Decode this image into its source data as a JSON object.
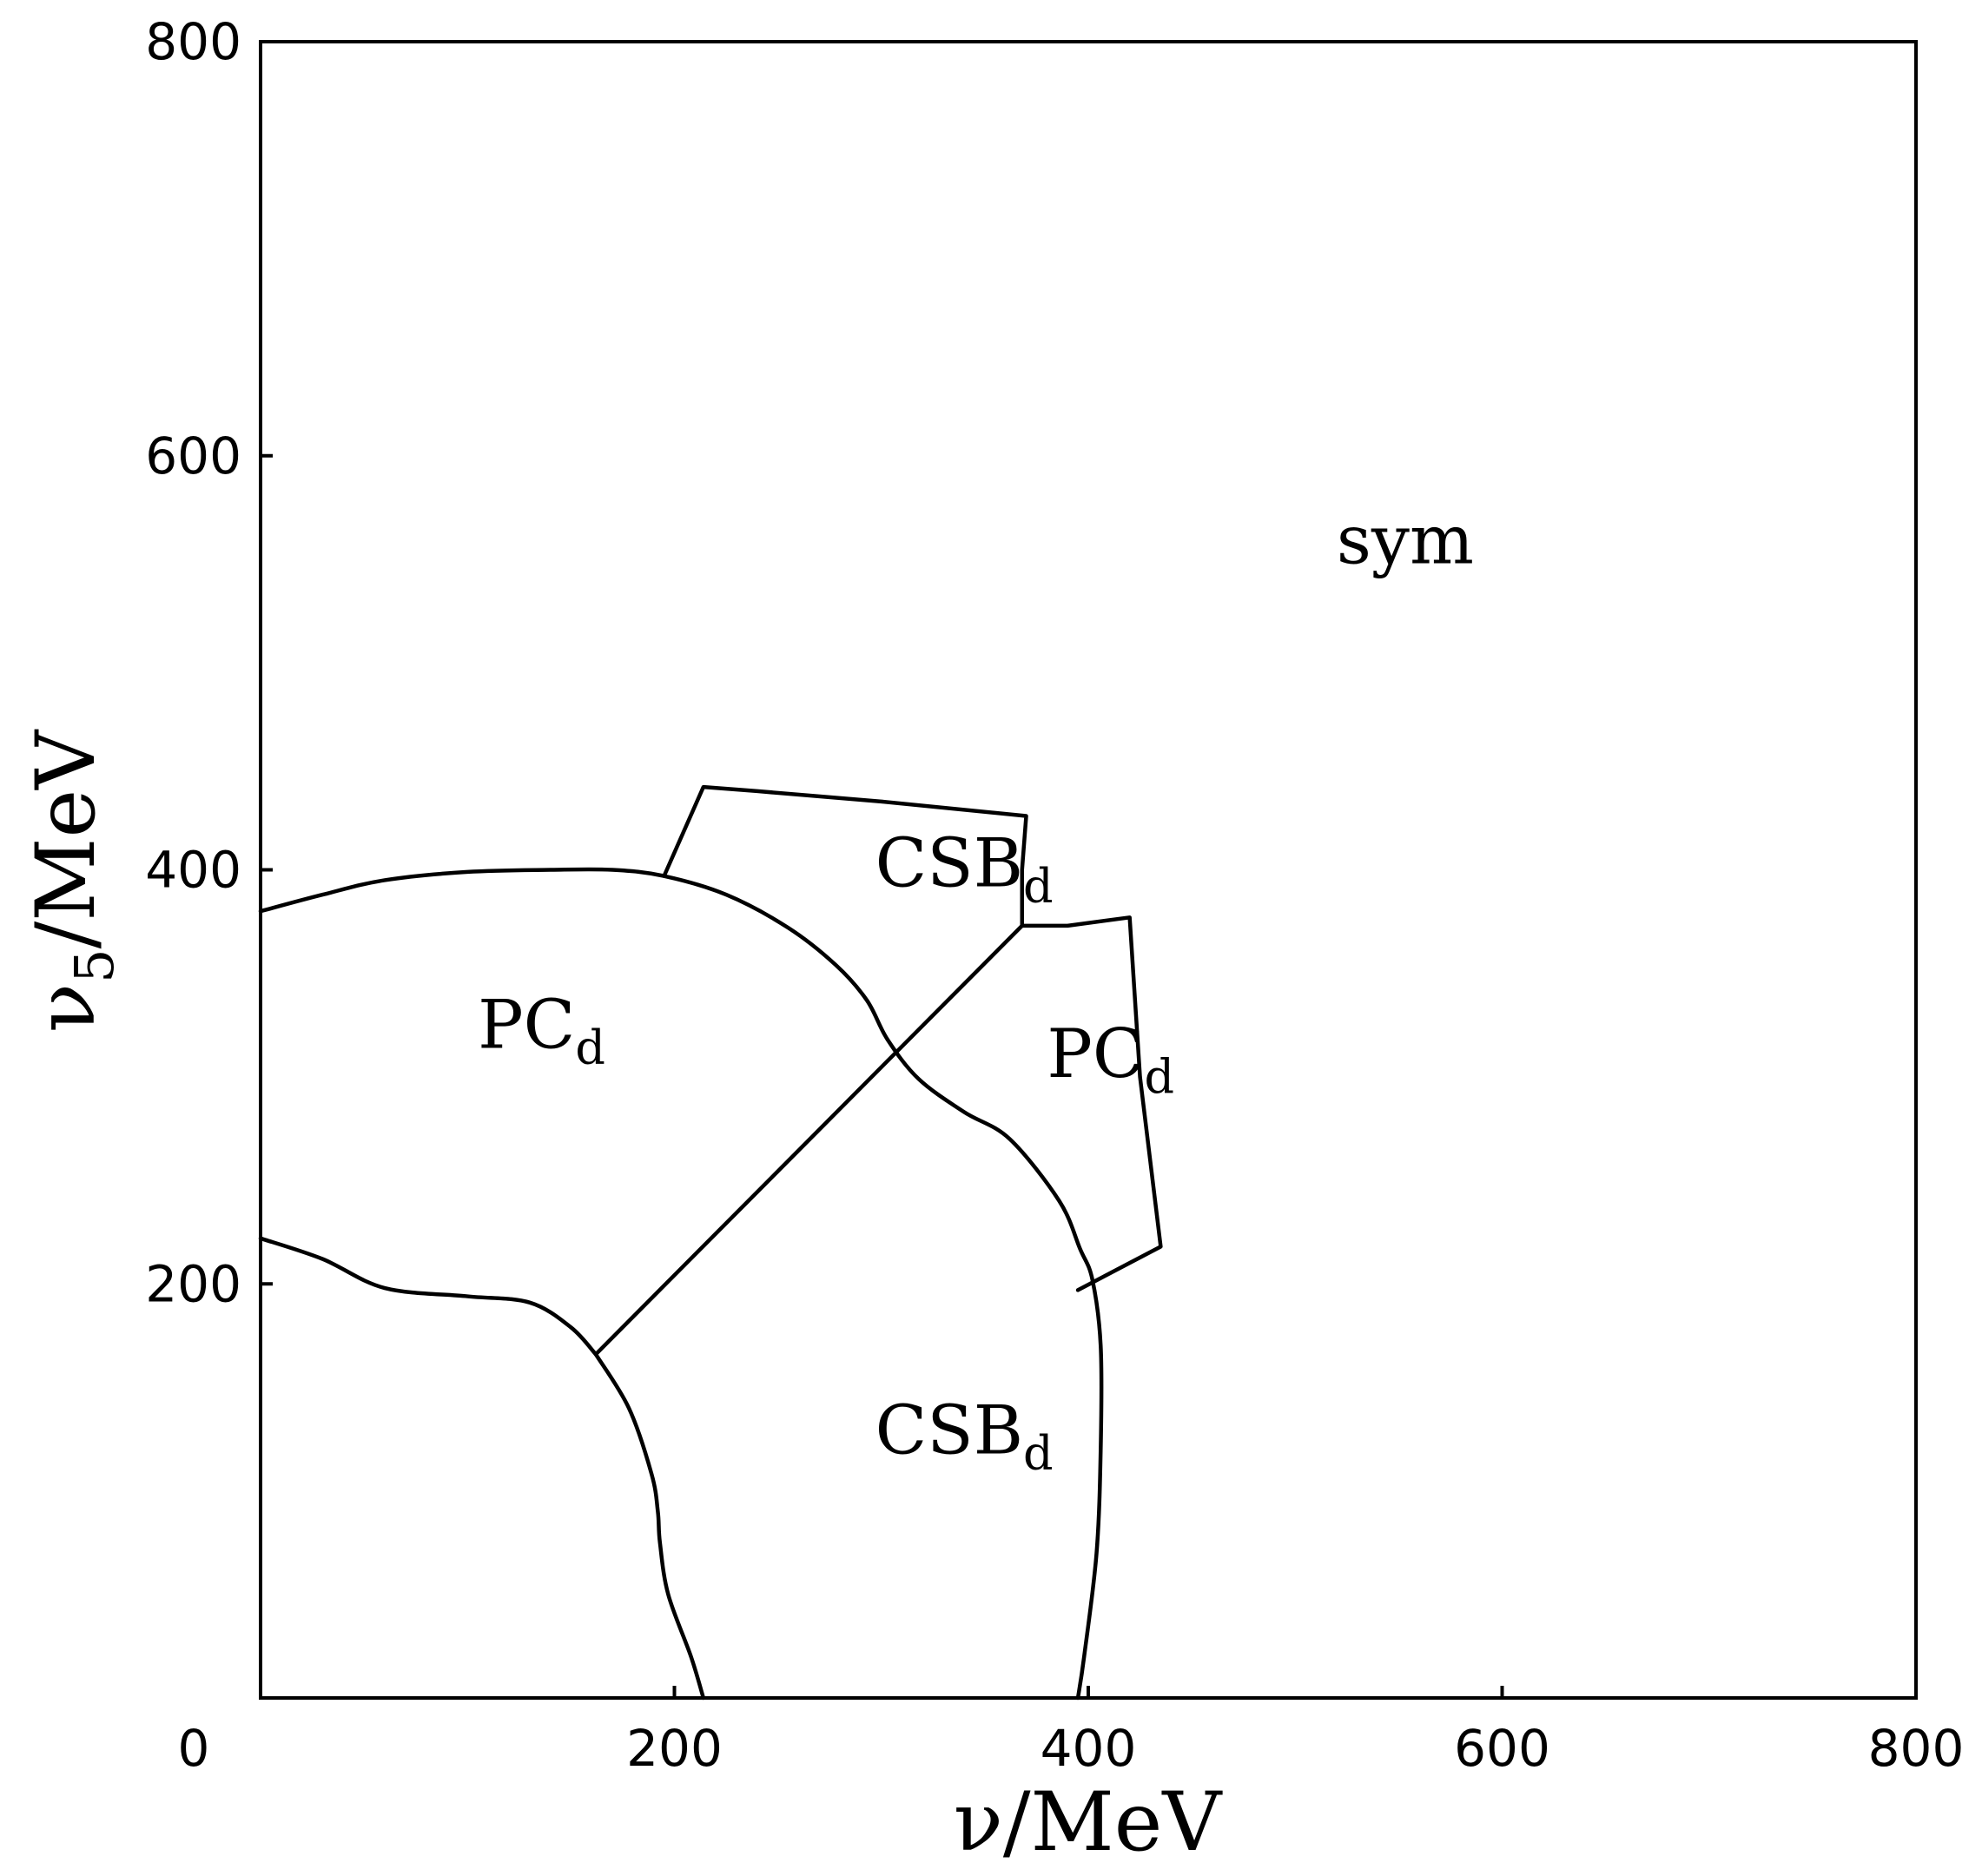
{
  "chart_data": {
    "type": "phase-diagram",
    "xlabel": "ν/MeV",
    "ylabel_main": "ν",
    "ylabel_sub": "5",
    "ylabel_rest": "/MeV",
    "xlim": [
      0,
      800
    ],
    "ylim": [
      0,
      800
    ],
    "xticks": [
      0,
      200,
      400,
      600,
      800
    ],
    "yticks": [
      200,
      400,
      600,
      800
    ],
    "xtick_labels": [
      "0",
      "200",
      "400",
      "600",
      "800"
    ],
    "ytick_labels": [
      "200",
      "400",
      "600",
      "800"
    ],
    "grid": false,
    "regions": [
      {
        "main": "sym",
        "sub": "",
        "at": [
          520,
          548
        ]
      },
      {
        "main": "CSB",
        "sub": "d",
        "at": [
          297,
          392
        ]
      },
      {
        "main": "PC",
        "sub": "d",
        "at": [
          105,
          314
        ]
      },
      {
        "main": "PC",
        "sub": "d",
        "at": [
          380,
          300
        ]
      },
      {
        "main": "CSB",
        "sub": "d",
        "at": [
          297,
          118
        ]
      }
    ],
    "boundaries": [
      {
        "name": "pc-upper-boundary",
        "points": [
          [
            0,
            380
          ],
          [
            30,
            388
          ],
          [
            60,
            395
          ],
          [
            100,
            399
          ],
          [
            140,
            400
          ],
          [
            170,
            400
          ],
          [
            195,
            397
          ],
          [
            225,
            388
          ],
          [
            255,
            372
          ],
          [
            278,
            354
          ],
          [
            293,
            337
          ],
          [
            303,
            318
          ],
          [
            318,
            299
          ],
          [
            340,
            283
          ],
          [
            362,
            270
          ],
          [
            386,
            240
          ],
          [
            396,
            217
          ],
          [
            402,
            202
          ],
          [
            406,
            170
          ],
          [
            406,
            120
          ],
          [
            404,
            70
          ],
          [
            398,
            20
          ],
          [
            395,
            0
          ]
        ]
      },
      {
        "name": "pc-lower-boundary",
        "points": [
          [
            0,
            222
          ],
          [
            30,
            212
          ],
          [
            60,
            198
          ],
          [
            100,
            194
          ],
          [
            130,
            191
          ],
          [
            150,
            179
          ],
          [
            162,
            166
          ]
        ]
      },
      {
        "name": "csb-left-boundary",
        "points": [
          [
            162,
            166
          ],
          [
            178,
            140
          ],
          [
            189,
            108
          ],
          [
            192,
            90
          ],
          [
            193,
            75
          ],
          [
            197,
            50
          ],
          [
            208,
            20
          ],
          [
            214,
            0
          ]
        ]
      },
      {
        "name": "diagonal-boundary",
        "points": [
          [
            162,
            166
          ],
          [
            368,
            373
          ]
        ]
      },
      {
        "name": "csb-island-boundary",
        "points": [
          [
            195,
            397
          ],
          [
            214,
            440
          ],
          [
            240,
            438
          ],
          [
            300,
            433
          ],
          [
            370,
            426
          ],
          [
            368,
            400
          ],
          [
            368,
            373
          ]
        ]
      },
      {
        "name": "pc-island-boundary",
        "points": [
          [
            368,
            373
          ],
          [
            390,
            373
          ],
          [
            420,
            377
          ],
          [
            425,
            300
          ],
          [
            435,
            218
          ],
          [
            395,
            197
          ]
        ]
      }
    ]
  }
}
